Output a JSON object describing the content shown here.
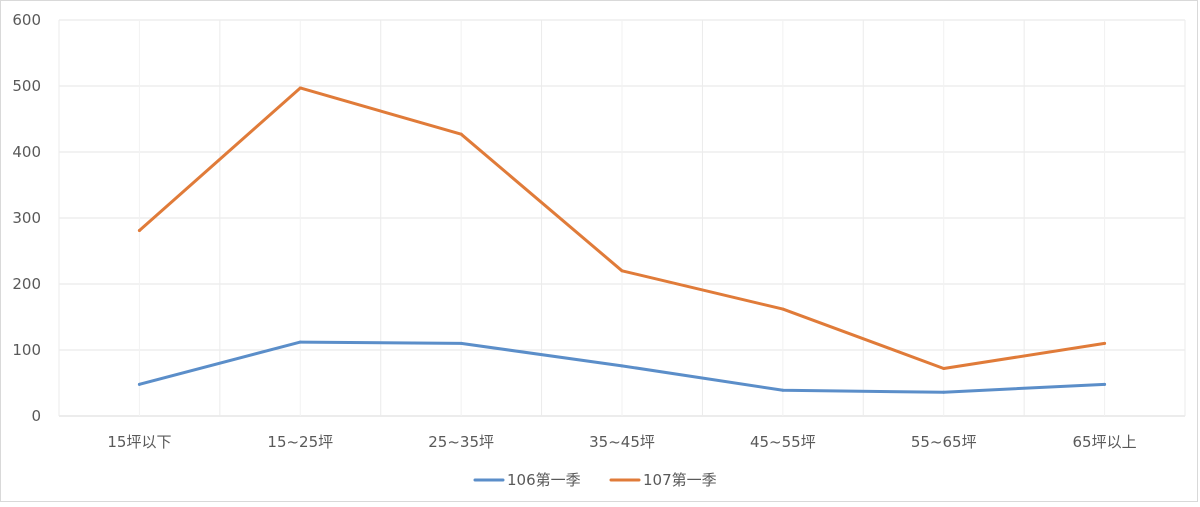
{
  "chart_data": {
    "type": "line",
    "title": "",
    "xlabel": "",
    "ylabel": "",
    "categories": [
      "15坪以下",
      "15~25坪",
      "25~35坪",
      "35~45坪",
      "45~55坪",
      "55~65坪",
      "65坪以上"
    ],
    "ylim": [
      0,
      600
    ],
    "yticks": [
      "0",
      "100",
      "200",
      "300",
      "400",
      "500",
      "600"
    ],
    "grid": true,
    "legend_position": "bottom",
    "series": [
      {
        "name": "106第一季",
        "color": "#5b8ec9",
        "values": [
          48,
          112,
          110,
          76,
          39,
          36,
          48
        ]
      },
      {
        "name": "107第一季",
        "color": "#e07b39",
        "values": [
          281,
          497,
          427,
          220,
          162,
          72,
          110
        ]
      }
    ]
  }
}
